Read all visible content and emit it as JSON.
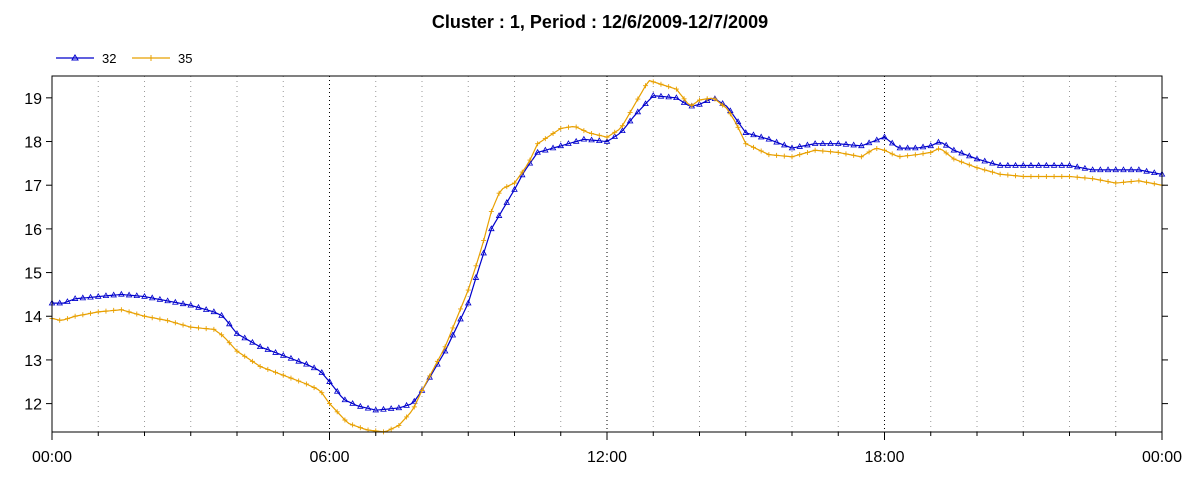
{
  "chart_data": {
    "type": "line",
    "title": "Cluster : 1, Period : 12/6/2009-12/7/2009",
    "xlabel": "",
    "ylabel": "",
    "x_ticks": [
      "00:00",
      "06:00",
      "12:00",
      "18:00",
      "00:00"
    ],
    "x_range_hours": [
      0,
      24
    ],
    "ylim": [
      11.35,
      19.5
    ],
    "y_ticks": [
      12,
      13,
      14,
      15,
      16,
      17,
      18,
      19
    ],
    "grid": "vertical dotted at every 6 hours",
    "legend_position": "top-left",
    "series": [
      {
        "name": "32",
        "color": "#0000cc",
        "marker": "triangle",
        "points": [
          [
            0,
            14.3
          ],
          [
            0.25,
            14.3
          ],
          [
            0.5,
            14.4
          ],
          [
            1,
            14.45
          ],
          [
            1.5,
            14.5
          ],
          [
            2,
            14.45
          ],
          [
            2.5,
            14.35
          ],
          [
            3,
            14.25
          ],
          [
            3.5,
            14.1
          ],
          [
            3.7,
            14.0
          ],
          [
            4,
            13.6
          ],
          [
            4.5,
            13.3
          ],
          [
            5,
            13.1
          ],
          [
            5.5,
            12.9
          ],
          [
            5.8,
            12.75
          ],
          [
            6,
            12.5
          ],
          [
            6.3,
            12.1
          ],
          [
            6.6,
            11.95
          ],
          [
            7,
            11.85
          ],
          [
            7.5,
            11.9
          ],
          [
            7.8,
            12.0
          ],
          [
            8,
            12.3
          ],
          [
            8.5,
            13.2
          ],
          [
            9,
            14.3
          ],
          [
            9.2,
            15.0
          ],
          [
            9.5,
            16.0
          ],
          [
            10,
            16.9
          ],
          [
            10.2,
            17.3
          ],
          [
            10.5,
            17.75
          ],
          [
            11,
            17.9
          ],
          [
            11.5,
            18.05
          ],
          [
            12,
            18.0
          ],
          [
            12.3,
            18.2
          ],
          [
            12.6,
            18.6
          ],
          [
            13,
            19.05
          ],
          [
            13.5,
            19.0
          ],
          [
            13.8,
            18.8
          ],
          [
            14,
            18.85
          ],
          [
            14.3,
            19.0
          ],
          [
            14.6,
            18.8
          ],
          [
            15,
            18.2
          ],
          [
            15.5,
            18.05
          ],
          [
            16,
            17.85
          ],
          [
            16.5,
            17.95
          ],
          [
            17,
            17.95
          ],
          [
            17.5,
            17.9
          ],
          [
            18,
            18.1
          ],
          [
            18.3,
            17.85
          ],
          [
            18.7,
            17.85
          ],
          [
            19,
            17.9
          ],
          [
            19.2,
            18.0
          ],
          [
            19.5,
            17.8
          ],
          [
            20,
            17.6
          ],
          [
            20.5,
            17.45
          ],
          [
            21,
            17.45
          ],
          [
            21.5,
            17.45
          ],
          [
            22,
            17.45
          ],
          [
            22.5,
            17.35
          ],
          [
            23,
            17.35
          ],
          [
            23.5,
            17.35
          ],
          [
            24,
            17.25
          ]
        ]
      },
      {
        "name": "35",
        "color": "#e8a000",
        "marker": "plus",
        "points": [
          [
            0,
            13.95
          ],
          [
            0.2,
            13.9
          ],
          [
            0.5,
            14.0
          ],
          [
            1,
            14.1
          ],
          [
            1.5,
            14.15
          ],
          [
            2,
            14.0
          ],
          [
            2.5,
            13.9
          ],
          [
            3,
            13.75
          ],
          [
            3.5,
            13.7
          ],
          [
            3.7,
            13.55
          ],
          [
            4,
            13.2
          ],
          [
            4.5,
            12.85
          ],
          [
            5,
            12.65
          ],
          [
            5.5,
            12.45
          ],
          [
            5.8,
            12.3
          ],
          [
            6,
            12.0
          ],
          [
            6.4,
            11.55
          ],
          [
            6.8,
            11.4
          ],
          [
            7.2,
            11.35
          ],
          [
            7.5,
            11.5
          ],
          [
            7.8,
            11.85
          ],
          [
            8,
            12.3
          ],
          [
            8.5,
            13.3
          ],
          [
            9,
            14.6
          ],
          [
            9.3,
            15.6
          ],
          [
            9.5,
            16.4
          ],
          [
            9.7,
            16.9
          ],
          [
            10,
            17.05
          ],
          [
            10.3,
            17.5
          ],
          [
            10.5,
            17.95
          ],
          [
            11,
            18.3
          ],
          [
            11.3,
            18.35
          ],
          [
            11.6,
            18.2
          ],
          [
            12,
            18.1
          ],
          [
            12.3,
            18.3
          ],
          [
            12.6,
            18.85
          ],
          [
            12.9,
            19.4
          ],
          [
            13.2,
            19.3
          ],
          [
            13.5,
            19.2
          ],
          [
            13.8,
            18.8
          ],
          [
            14,
            18.95
          ],
          [
            14.3,
            19.0
          ],
          [
            14.6,
            18.75
          ],
          [
            14.8,
            18.4
          ],
          [
            15,
            17.95
          ],
          [
            15.5,
            17.7
          ],
          [
            16,
            17.65
          ],
          [
            16.5,
            17.8
          ],
          [
            17,
            17.75
          ],
          [
            17.5,
            17.65
          ],
          [
            17.8,
            17.85
          ],
          [
            18,
            17.8
          ],
          [
            18.3,
            17.65
          ],
          [
            18.7,
            17.7
          ],
          [
            19,
            17.75
          ],
          [
            19.2,
            17.85
          ],
          [
            19.5,
            17.6
          ],
          [
            20,
            17.4
          ],
          [
            20.5,
            17.25
          ],
          [
            21,
            17.2
          ],
          [
            21.5,
            17.2
          ],
          [
            22,
            17.2
          ],
          [
            22.5,
            17.15
          ],
          [
            23,
            17.05
          ],
          [
            23.5,
            17.1
          ],
          [
            24,
            17.0
          ]
        ]
      }
    ]
  }
}
